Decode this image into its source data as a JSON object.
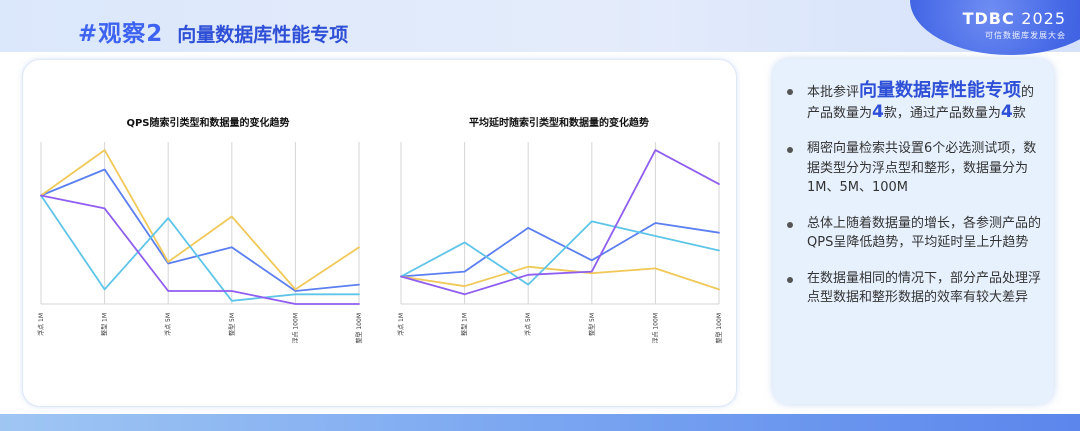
{
  "header": {
    "tag": "#观察2",
    "title": "向量数据库性能专项",
    "logo_main": "TDBC",
    "logo_year": "2025",
    "logo_sub": "可信数据库发展大会"
  },
  "bullets": {
    "b1": {
      "p1": "本批参评",
      "hl": "向量数据库性能专项",
      "p2": "的产品数量为",
      "n1": "4",
      "p3": "款，通过产品数量为",
      "n2": "4",
      "p4": "款"
    },
    "b2": "稠密向量检索共设置6个必选测试项，数据类型分为浮点型和整形，数据量分为1M、5M、100M",
    "b3": "总体上随着数据量的增长，各参测产品的QPS呈降低趋势，平均延时呈上升趋势",
    "b4": "在数据量相同的情况下，部分产品处理浮点型数据和整形数据的效率有较大差异"
  },
  "colors": {
    "brand_blue": "#3d63f0",
    "series": [
      "#5b7ff0",
      "#f0c95a",
      "#5fc5e8",
      "#8f5ef0"
    ]
  },
  "chart_data": [
    {
      "type": "line",
      "title": "QPS随索引类型和数据量的变化趋势",
      "categories": [
        "浮点 1M",
        "整型 1M",
        "浮点 5M",
        "整型 5M",
        "浮点 100M",
        "整型 100M"
      ],
      "grid": "vertical",
      "ylim": [
        0,
        100
      ],
      "series": [
        {
          "values": [
            67,
            83,
            25,
            35,
            8,
            12
          ]
        },
        {
          "values": [
            67,
            95,
            26,
            54,
            9,
            35
          ]
        },
        {
          "values": [
            67,
            9,
            53,
            2,
            6,
            6
          ]
        },
        {
          "values": [
            67,
            59,
            8,
            8,
            0,
            0
          ]
        }
      ]
    },
    {
      "type": "line",
      "title": "平均延时随索引类型和数据量的变化趋势",
      "categories": [
        "浮点 1M",
        "整型 1M",
        "浮点 5M",
        "整型 5M",
        "浮点 100M",
        "整型 100M"
      ],
      "grid": "vertical",
      "ylim": [
        0,
        100
      ],
      "series": [
        {
          "values": [
            17,
            20,
            47,
            27,
            50,
            44
          ]
        },
        {
          "values": [
            17,
            11,
            23,
            19,
            22,
            9
          ]
        },
        {
          "values": [
            17,
            38,
            12,
            51,
            42,
            33
          ]
        },
        {
          "values": [
            17,
            6,
            18,
            20,
            95,
            74
          ]
        }
      ]
    }
  ]
}
